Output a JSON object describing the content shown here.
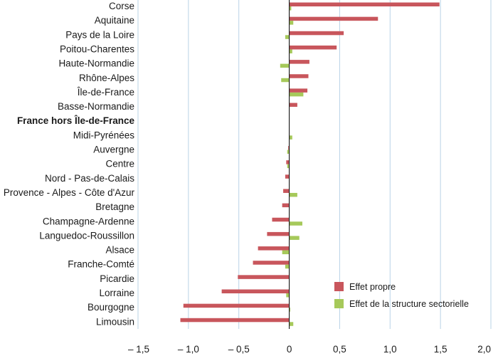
{
  "chart_data": {
    "type": "bar",
    "orientation": "horizontal",
    "categories": [
      "Corse",
      "Aquitaine",
      "Pays de la Loire",
      "Poitou-Charentes",
      "Haute-Normandie",
      "Rhône-Alpes",
      "Île-de-France",
      "Basse-Normandie",
      "France hors Île-de-France",
      "Midi-Pyrénées",
      "Auvergne",
      "Centre",
      "Nord - Pas-de-Calais",
      "Provence - Alpes - Côte d'Azur",
      "Bretagne",
      "Champagne-Ardenne",
      "Languedoc-Roussillon",
      "Alsace",
      "Franche-Comté",
      "Picardie",
      "Lorraine",
      "Bourgogne",
      "Limousin"
    ],
    "bold_category": "France hors Île-de-France",
    "series": [
      {
        "name": "Effet propre",
        "color": "#c8565c",
        "values": [
          1.49,
          0.88,
          0.54,
          0.47,
          0.2,
          0.19,
          0.18,
          0.08,
          0.0,
          0.0,
          -0.01,
          -0.03,
          -0.04,
          -0.06,
          -0.07,
          -0.17,
          -0.22,
          -0.31,
          -0.36,
          -0.51,
          -0.67,
          -1.05,
          -1.08
        ]
      },
      {
        "name": "Effet de la structure sectorielle",
        "color": "#a6c95a",
        "values": [
          0.02,
          0.04,
          -0.04,
          0.03,
          -0.09,
          -0.08,
          0.14,
          0.0,
          0.0,
          0.03,
          -0.02,
          -0.02,
          0.0,
          0.08,
          0.0,
          0.13,
          0.1,
          -0.07,
          -0.04,
          0.0,
          -0.03,
          0.01,
          0.04
        ]
      }
    ],
    "x_ticks": [
      -1.5,
      -1.0,
      -0.5,
      0,
      0.5,
      1.0,
      1.5,
      2.0
    ],
    "x_tick_labels": [
      "– 1,5",
      "– 1,0",
      "– 0,5",
      "0",
      "0,5",
      "1,0",
      "1,5",
      "2,0"
    ],
    "xlim": [
      -1.5,
      2.0
    ],
    "grid": true,
    "legend_position": "bottom-right"
  }
}
